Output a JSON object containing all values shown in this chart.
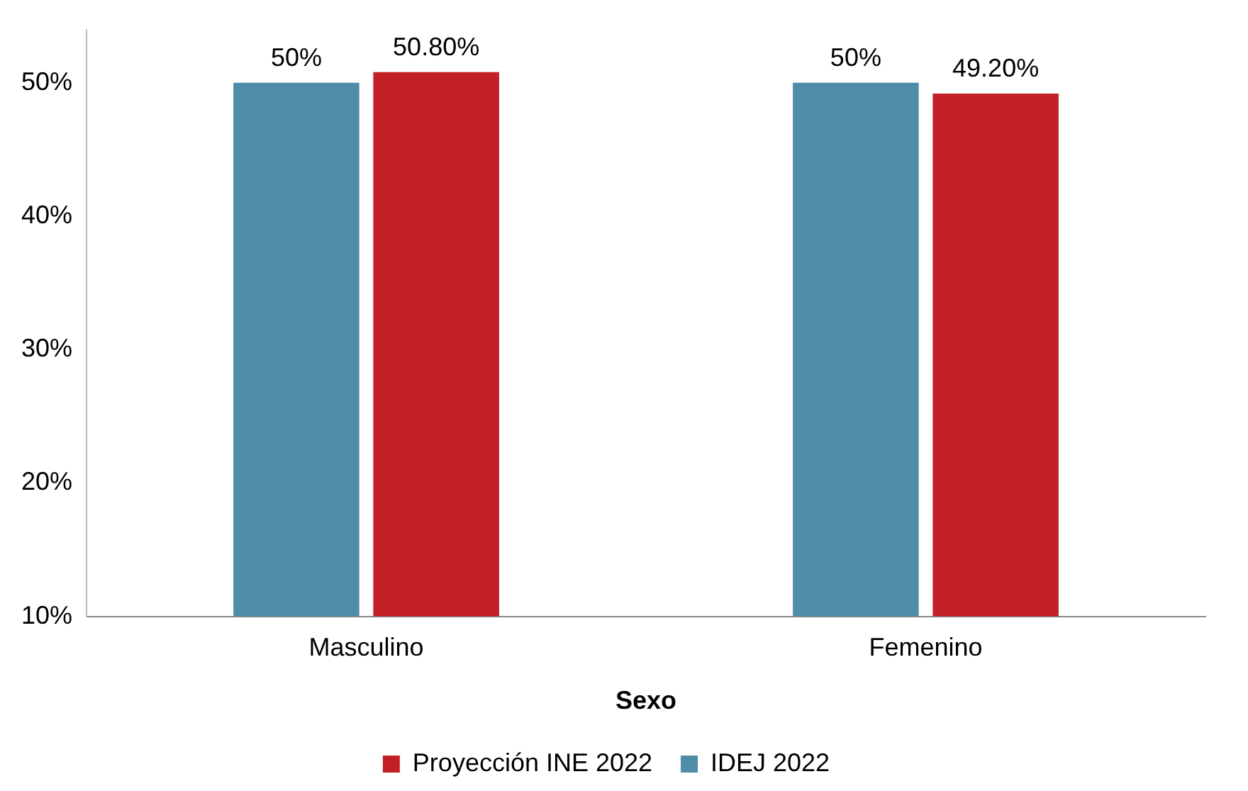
{
  "chart_data": {
    "type": "bar",
    "xlabel": "Sexo",
    "categories": [
      "Masculino",
      "Femenino"
    ],
    "series": [
      {
        "name": "IDEJ 2022",
        "color": "#4e8ca8",
        "values": [
          50,
          50
        ],
        "value_labels": [
          "50%",
          "50%"
        ]
      },
      {
        "name": "Proyección INE 2022",
        "color": "#c22026",
        "values": [
          50.8,
          49.2
        ],
        "value_labels": [
          "50.80%",
          "49.20%"
        ]
      }
    ],
    "ylim": [
      10,
      54
    ],
    "yticks": [
      {
        "value": 10,
        "label": "10%"
      },
      {
        "value": 20,
        "label": "20%"
      },
      {
        "value": 30,
        "label": "30%"
      },
      {
        "value": 40,
        "label": "40%"
      },
      {
        "value": 50,
        "label": "50%"
      }
    ],
    "grid": false,
    "legend": "bottom"
  }
}
